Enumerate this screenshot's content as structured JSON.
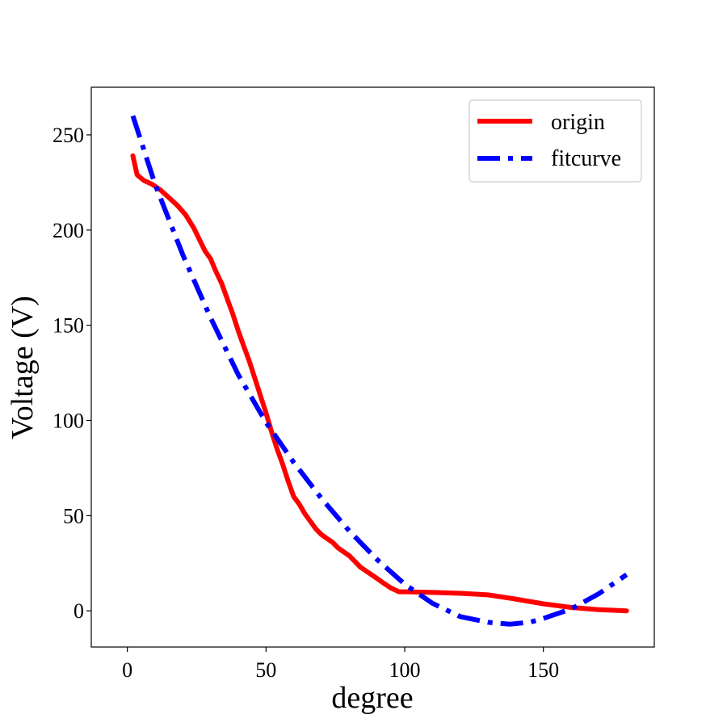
{
  "chart_data": {
    "type": "line",
    "xlabel": "degree",
    "ylabel": "Voltage (V)",
    "xlim": [
      -13,
      190
    ],
    "ylim": [
      -19,
      275
    ],
    "xticks": [
      0,
      50,
      100,
      150
    ],
    "yticks": [
      0,
      50,
      100,
      150,
      200,
      250
    ],
    "grid": false,
    "legend": "top-right",
    "series": [
      {
        "name": "origin",
        "color": "#ff0000",
        "style": "solid",
        "x": [
          2,
          3.5,
          6,
          9,
          12,
          15,
          18,
          21,
          24,
          26,
          28,
          30,
          32,
          34,
          36,
          38,
          40,
          42,
          44,
          46,
          48,
          50,
          52,
          54,
          56,
          58,
          60,
          62,
          64,
          66,
          68,
          70,
          72,
          74,
          76,
          78,
          80,
          82,
          84,
          86,
          88,
          90,
          92,
          95,
          98,
          100,
          110,
          120,
          130,
          140,
          150,
          160,
          170,
          180
        ],
        "y": [
          239,
          229,
          226,
          224,
          221,
          217,
          213,
          208,
          201,
          195,
          189,
          185,
          178,
          172,
          164,
          156,
          147,
          139,
          131,
          122,
          113,
          104,
          94,
          85,
          77,
          68,
          60,
          56,
          51,
          47,
          43,
          40,
          38,
          36,
          33,
          31,
          29,
          26,
          23,
          21,
          19,
          17,
          15,
          12,
          10,
          10,
          9.7,
          9.2,
          8.4,
          6.2,
          3.7,
          1.8,
          0.6,
          0
        ]
      },
      {
        "name": "fitcurve",
        "color": "#0000ff",
        "style": "dashdot",
        "x": [
          2,
          10,
          20,
          30,
          40,
          50,
          60,
          70,
          80,
          90,
          100,
          110,
          120,
          130,
          138,
          145,
          150,
          160,
          170,
          180
        ],
        "y": [
          260,
          224,
          187,
          154,
          124,
          99,
          78,
          59,
          42,
          27,
          14,
          4,
          -3,
          -6,
          -7,
          -6,
          -4,
          1,
          9,
          19
        ]
      }
    ]
  }
}
